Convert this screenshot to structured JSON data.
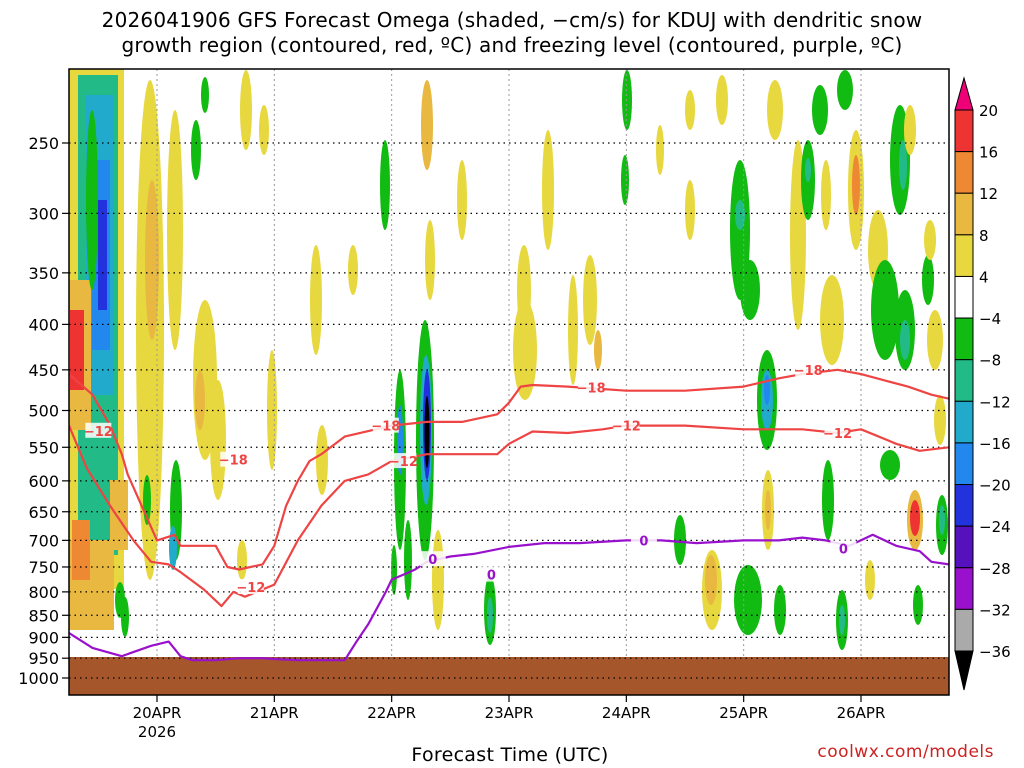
{
  "chart_data": {
    "type": "heatmap",
    "title_line1": "2026041906 GFS Forecast Omega (shaded, −cm/s) for KDUJ with dendritic snow",
    "title_line2": "growth region (contoured, red, ºC) and freezing level (contoured, purple, ºC)",
    "xlabel": "Forecast Time (UTC)",
    "ylabel": "",
    "x_ticks": [
      "20APR",
      "21APR",
      "22APR",
      "23APR",
      "24APR",
      "25APR",
      "26APR"
    ],
    "x_year": "2026",
    "x_range_days": [
      19.25,
      26.75
    ],
    "y_ticks": [
      "250",
      "300",
      "350",
      "400",
      "450",
      "500",
      "550",
      "600",
      "650",
      "700",
      "750",
      "800",
      "850",
      "900",
      "950",
      "1000"
    ],
    "y_range_hpa": [
      1000,
      200
    ],
    "grid": "dotted",
    "colorbar": {
      "levels": [
        "20",
        "16",
        "12",
        "8",
        "4",
        "−4",
        "−8",
        "−12",
        "−16",
        "−20",
        "−24",
        "−28",
        "−32",
        "−36"
      ],
      "colors": [
        "#ee0077",
        "#ee3333",
        "#ee8833",
        "#e8b840",
        "#e8d840",
        "#ffffff",
        "#11bb11",
        "#22bb88",
        "#22aacc",
        "#2288ee",
        "#2233dd",
        "#5511bb",
        "#9911cc",
        "#aaaaaa",
        "#000000"
      ]
    },
    "contour_labels": {
      "red": [
        "−18",
        "−12"
      ],
      "purple": [
        "0"
      ]
    },
    "series": [
      {
        "name": "-18 C (dendritic top)",
        "color": "#ee4444",
        "x": [
          19.25,
          19.45,
          19.6,
          19.7,
          19.75,
          20.0,
          20.15,
          20.2,
          20.5,
          20.6,
          20.7,
          20.9,
          21.0,
          21.1,
          21.2,
          21.3,
          21.4,
          21.6,
          22.0,
          22.3,
          22.6,
          22.9,
          23.0,
          23.1,
          23.2,
          23.5,
          24.0,
          24.5,
          25.0,
          25.3,
          25.5,
          25.8,
          26.0,
          26.4,
          26.6,
          26.75
        ],
        "y": [
          455,
          480,
          520,
          560,
          590,
          700,
          690,
          710,
          710,
          750,
          755,
          745,
          710,
          640,
          600,
          570,
          560,
          535,
          520,
          515,
          515,
          505,
          490,
          470,
          468,
          470,
          475,
          475,
          470,
          460,
          455,
          450,
          455,
          470,
          480,
          485
        ]
      },
      {
        "name": "-12 C (dendritic bottom)",
        "color": "#ee4444",
        "x": [
          19.25,
          19.4,
          19.6,
          19.8,
          19.95,
          20.1,
          20.2,
          20.4,
          20.55,
          20.65,
          20.75,
          20.85,
          21.0,
          21.2,
          21.4,
          21.6,
          21.8,
          22.0,
          22.3,
          22.6,
          22.9,
          23.0,
          23.2,
          23.5,
          23.8,
          24.0,
          24.5,
          25.0,
          25.3,
          25.5,
          25.8,
          26.0,
          26.3,
          26.5,
          26.75
        ],
        "y": [
          520,
          580,
          640,
          700,
          740,
          745,
          760,
          795,
          830,
          800,
          810,
          800,
          785,
          700,
          640,
          600,
          590,
          570,
          560,
          560,
          560,
          545,
          528,
          530,
          525,
          520,
          520,
          525,
          525,
          525,
          530,
          525,
          545,
          555,
          550
        ]
      },
      {
        "name": "0 C (freezing level)",
        "color": "#9911cc",
        "x": [
          19.25,
          19.45,
          19.7,
          19.95,
          20.1,
          20.2,
          20.3,
          20.5,
          20.7,
          20.9,
          21.0,
          21.2,
          21.4,
          21.6,
          21.7,
          21.8,
          21.95,
          22.0,
          22.15,
          22.2,
          22.3,
          22.5,
          22.7,
          23.0,
          23.3,
          23.6,
          24.0,
          24.3,
          24.6,
          25.0,
          25.3,
          25.5,
          25.7,
          25.9,
          26.1,
          26.3,
          26.5,
          26.6,
          26.75
        ],
        "y": [
          890,
          925,
          945,
          920,
          910,
          945,
          955,
          955,
          950,
          950,
          952,
          955,
          955,
          955,
          910,
          870,
          800,
          775,
          760,
          755,
          740,
          730,
          725,
          712,
          705,
          705,
          700,
          700,
          705,
          700,
          700,
          695,
          700,
          710,
          690,
          710,
          720,
          740,
          745
        ]
      }
    ]
  },
  "credit": "coolwx.com/models"
}
